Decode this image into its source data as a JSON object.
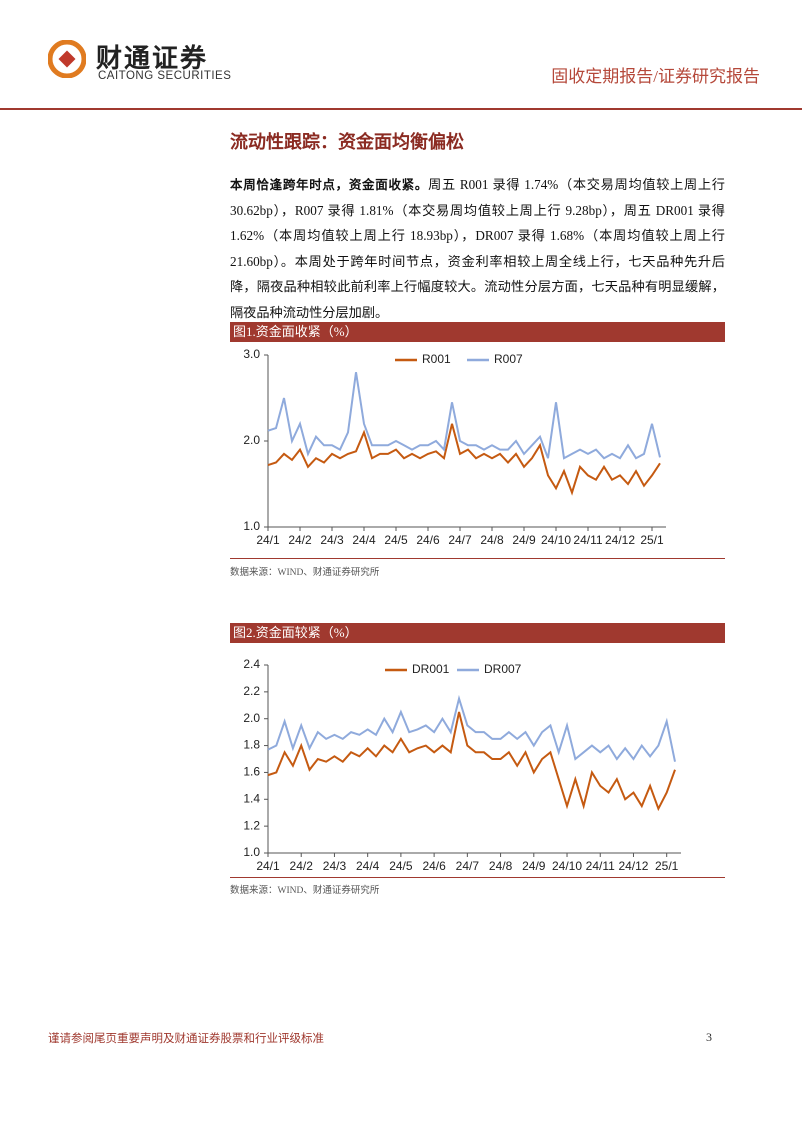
{
  "header": {
    "logo": "财通证券",
    "logo_en": "CAITONG SECURITIES",
    "report_type": "固收定期报告/证券研究报告"
  },
  "section_title": "流动性跟踪：资金面均衡偏松",
  "paragraph": {
    "lead": "本周恰逢跨年时点，资金面收紧。",
    "text": "周五 R001 录得 1.74%（本交易周均值较上周上行 30.62bp），R007 录得 1.81%（本交易周均值较上周上行 9.28bp），周五 DR001 录得 1.62%（本周均值较上周上行 18.93bp），DR007 录得 1.68%（本周均值较上周上行 21.60bp）。本周处于跨年时间节点，资金利率相较上周全线上行，七天品种先升后降，隔夜品种相较此前利率上行幅度较大。流动性分层方面，七天品种有明显缓解，隔夜品种流动性分层加剧。"
  },
  "chart_data": [
    {
      "type": "line",
      "title": "图1.资金面收紧（%）",
      "source": "数据来源：WIND、财通证券研究所",
      "legend": "top",
      "categories": [
        "24/1",
        null,
        null,
        null,
        "24/2",
        null,
        null,
        null,
        "24/3",
        null,
        null,
        null,
        "24/4",
        null,
        null,
        null,
        "24/5",
        null,
        null,
        null,
        "24/6",
        null,
        null,
        null,
        "24/7",
        null,
        null,
        null,
        "24/8",
        null,
        null,
        null,
        "24/9",
        null,
        null,
        null,
        "24/10",
        null,
        null,
        null,
        "24/11",
        null,
        null,
        null,
        "24/12",
        null,
        null,
        null,
        "25/1",
        null
      ],
      "ylim": [
        1,
        3
      ],
      "yticks": [
        {
          "value": 1,
          "label": "1.0"
        },
        {
          "value": 2,
          "label": "2.0"
        },
        {
          "value": 3,
          "label": "3.0"
        }
      ],
      "series": [
        {
          "name": "R001",
          "color": "#c55a11",
          "values": [
            1.72,
            1.75,
            1.85,
            1.78,
            1.9,
            1.7,
            1.8,
            1.75,
            1.85,
            1.8,
            1.85,
            1.88,
            2.1,
            1.8,
            1.85,
            1.85,
            1.9,
            1.8,
            1.85,
            1.8,
            1.85,
            1.88,
            1.8,
            2.2,
            1.85,
            1.9,
            1.8,
            1.85,
            1.8,
            1.85,
            1.75,
            1.85,
            1.7,
            1.8,
            1.95,
            1.6,
            1.45,
            1.65,
            1.4,
            1.7,
            1.6,
            1.55,
            1.7,
            1.55,
            1.6,
            1.5,
            1.65,
            1.48,
            1.6,
            1.74
          ]
        },
        {
          "name": "R007",
          "color": "#8faadc",
          "values": [
            2.12,
            2.15,
            2.5,
            2.0,
            2.2,
            1.85,
            2.05,
            1.95,
            1.95,
            1.9,
            2.1,
            2.8,
            2.2,
            1.95,
            1.95,
            1.95,
            2.0,
            1.95,
            1.9,
            1.95,
            1.95,
            2.0,
            1.9,
            2.45,
            2.0,
            1.95,
            1.95,
            1.9,
            1.95,
            1.9,
            1.9,
            2.0,
            1.85,
            1.95,
            2.05,
            1.8,
            2.45,
            1.8,
            1.85,
            1.9,
            1.85,
            1.9,
            1.8,
            1.85,
            1.8,
            1.95,
            1.8,
            1.85,
            2.2,
            1.81
          ]
        }
      ]
    },
    {
      "type": "line",
      "title": "图2.资金面较紧（%）",
      "source": "数据来源：WIND、财通证券研究所",
      "legend": "top",
      "categories": [
        "24/1",
        null,
        null,
        null,
        "24/2",
        null,
        null,
        null,
        "24/3",
        null,
        null,
        null,
        "24/4",
        null,
        null,
        null,
        "24/5",
        null,
        null,
        null,
        "24/6",
        null,
        null,
        null,
        "24/7",
        null,
        null,
        null,
        "24/8",
        null,
        null,
        null,
        "24/9",
        null,
        null,
        null,
        "24/10",
        null,
        null,
        null,
        "24/11",
        null,
        null,
        null,
        "24/12",
        null,
        null,
        null,
        "25/1",
        null
      ],
      "ylim": [
        1,
        2.4
      ],
      "yticks": [
        {
          "value": 1,
          "label": "1.0"
        },
        {
          "value": 1.2,
          "label": "1.2"
        },
        {
          "value": 1.4,
          "label": "1.4"
        },
        {
          "value": 1.6,
          "label": "1.6"
        },
        {
          "value": 1.8,
          "label": "1.8"
        },
        {
          "value": 2,
          "label": "2.0"
        },
        {
          "value": 2.2,
          "label": "2.2"
        },
        {
          "value": 2.4,
          "label": "2.4"
        }
      ],
      "series": [
        {
          "name": "DR001",
          "color": "#c55a11",
          "values": [
            1.58,
            1.6,
            1.75,
            1.65,
            1.8,
            1.62,
            1.7,
            1.68,
            1.72,
            1.68,
            1.75,
            1.72,
            1.78,
            1.72,
            1.8,
            1.75,
            1.85,
            1.75,
            1.78,
            1.8,
            1.75,
            1.8,
            1.75,
            2.05,
            1.8,
            1.75,
            1.75,
            1.7,
            1.7,
            1.75,
            1.65,
            1.75,
            1.6,
            1.7,
            1.75,
            1.55,
            1.35,
            1.55,
            1.35,
            1.6,
            1.5,
            1.45,
            1.55,
            1.4,
            1.45,
            1.35,
            1.5,
            1.33,
            1.45,
            1.62
          ]
        },
        {
          "name": "DR007",
          "color": "#8faadc",
          "values": [
            1.77,
            1.8,
            1.98,
            1.78,
            1.95,
            1.78,
            1.9,
            1.85,
            1.88,
            1.85,
            1.9,
            1.88,
            1.92,
            1.88,
            2.0,
            1.9,
            2.05,
            1.9,
            1.92,
            1.95,
            1.9,
            2.0,
            1.9,
            2.15,
            1.95,
            1.9,
            1.9,
            1.85,
            1.85,
            1.9,
            1.85,
            1.9,
            1.8,
            1.9,
            1.95,
            1.75,
            1.95,
            1.7,
            1.75,
            1.8,
            1.75,
            1.8,
            1.7,
            1.78,
            1.7,
            1.8,
            1.72,
            1.8,
            1.98,
            1.68
          ]
        }
      ]
    }
  ],
  "footer": {
    "disclaimer": "谨请参阅尾页重要声明及财通证券股票和行业评级标准",
    "page": "3"
  }
}
